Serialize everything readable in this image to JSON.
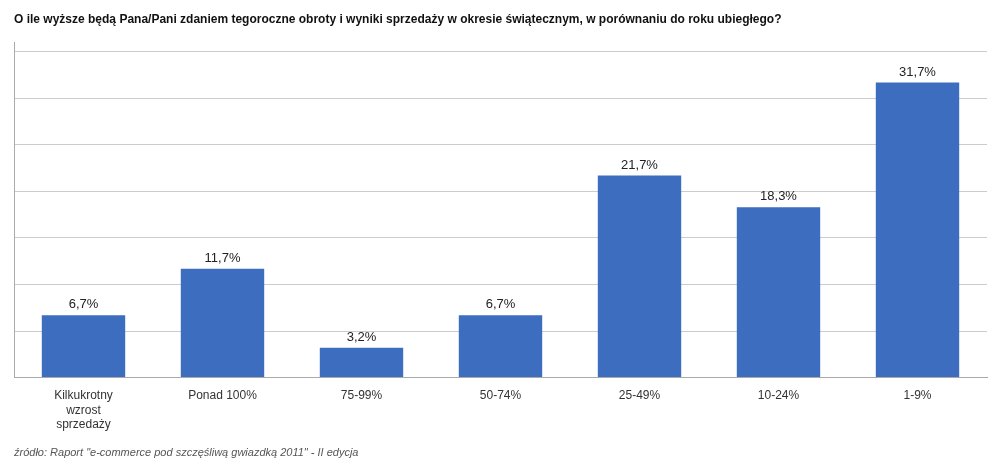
{
  "chart_data": {
    "type": "bar",
    "title": "O ile wyższe będą Pana/Pani zdaniem tegoroczne obroty i wyniki sprzedaży w okresie świątecznym, w porównaniu do roku ubiegłego?",
    "annotations": [
      "źródło: Raport \"e-commerce pod szczęśliwą gwiazdką 2011\" - II edycja"
    ],
    "categories": [
      "Kilkukrotny\nwzrost\nsprzedaży",
      "Ponad 100%",
      "75-99%",
      "50-74%",
      "25-49%",
      "10-24%",
      "1-9%"
    ],
    "values": [
      6.7,
      11.7,
      3.2,
      6.7,
      21.7,
      18.3,
      31.7
    ],
    "value_labels": [
      "6,7%",
      "11,7%",
      "3,2%",
      "6,7%",
      "21,7%",
      "18,3%",
      "31,7%"
    ],
    "color": "#3c6dbf",
    "ylim": [
      0,
      36
    ],
    "yticks": [
      0,
      5,
      10,
      15,
      20,
      25,
      30,
      35
    ],
    "grid": true,
    "data_labels": true,
    "tick_labels": "x"
  }
}
